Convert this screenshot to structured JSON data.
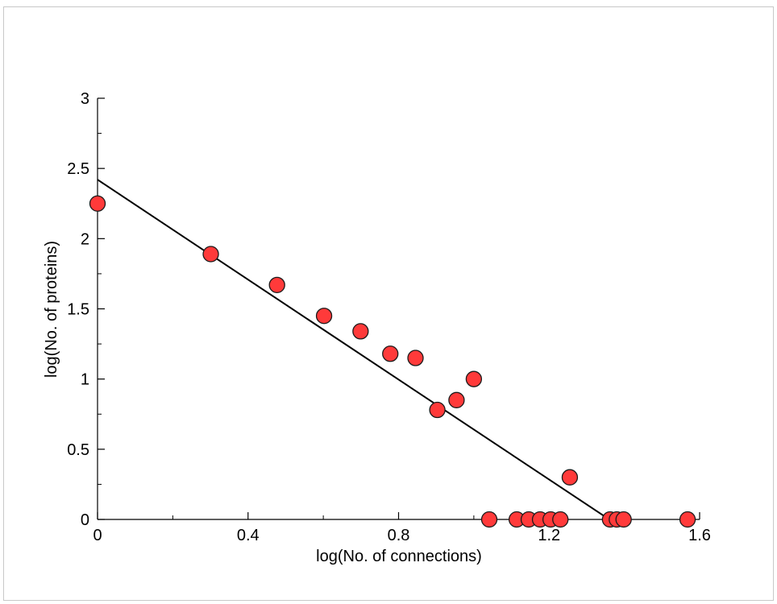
{
  "chart_data": {
    "type": "scatter",
    "title": "",
    "xlabel": "log(No. of connections)",
    "ylabel": "log(No. of proteins)",
    "xlim": [
      0,
      1.6
    ],
    "ylim": [
      0,
      3
    ],
    "grid": false,
    "x_ticks": [
      0,
      0.4,
      0.8,
      1.2,
      1.6
    ],
    "x_tick_labels": [
      "0",
      "0.4",
      "0.8",
      "1.2",
      "1.6"
    ],
    "y_ticks": [
      0,
      0.5,
      1,
      1.5,
      2,
      2.5,
      3
    ],
    "y_tick_labels": [
      "0",
      "0.5",
      "1",
      "1.5",
      "2",
      "2.5",
      "3"
    ],
    "marker_color": "#ff3a3a",
    "line_color": "#000000",
    "series": [
      {
        "type": "scatter",
        "points": [
          [
            0.0,
            2.25
          ],
          [
            0.301,
            1.89
          ],
          [
            0.477,
            1.67
          ],
          [
            0.602,
            1.45
          ],
          [
            0.699,
            1.34
          ],
          [
            0.778,
            1.18
          ],
          [
            0.845,
            1.15
          ],
          [
            0.903,
            0.78
          ],
          [
            0.954,
            0.85
          ],
          [
            1.0,
            1.0
          ],
          [
            1.041,
            0.0
          ],
          [
            1.114,
            0.0
          ],
          [
            1.146,
            0.0
          ],
          [
            1.176,
            0.0
          ],
          [
            1.204,
            0.0
          ],
          [
            1.23,
            0.0
          ],
          [
            1.255,
            0.3
          ],
          [
            1.362,
            0.0
          ],
          [
            1.38,
            0.0
          ],
          [
            1.398,
            0.0
          ],
          [
            1.568,
            0.0
          ]
        ]
      },
      {
        "type": "line",
        "points": [
          [
            0.0,
            2.42
          ],
          [
            1.36,
            0.0
          ]
        ]
      }
    ]
  }
}
